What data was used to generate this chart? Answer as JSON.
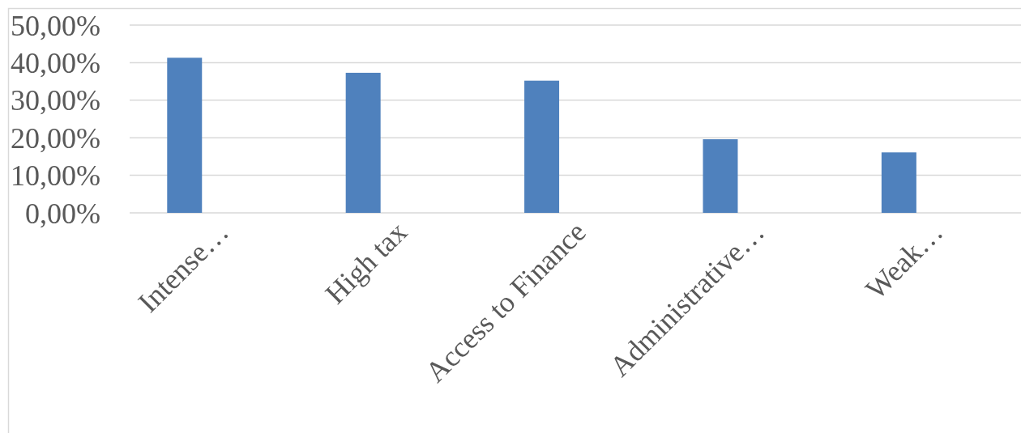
{
  "chart_data": {
    "type": "bar",
    "categories": [
      "Intense…",
      "High tax",
      "Access to Finance",
      "Administrative…",
      "Weak…"
    ],
    "values": [
      41.3,
      37.3,
      35.2,
      19.6,
      16.1
    ],
    "color": "#4f81bd",
    "ylim": [
      0,
      50
    ],
    "yticks": [
      {
        "value": 0,
        "label": "0,00%"
      },
      {
        "value": 10,
        "label": "10,00%"
      },
      {
        "value": 20,
        "label": "20,00%"
      },
      {
        "value": 30,
        "label": "30,00%"
      },
      {
        "value": 40,
        "label": "40,00%"
      },
      {
        "value": 50,
        "label": "50,00%"
      }
    ],
    "grid": "y"
  }
}
